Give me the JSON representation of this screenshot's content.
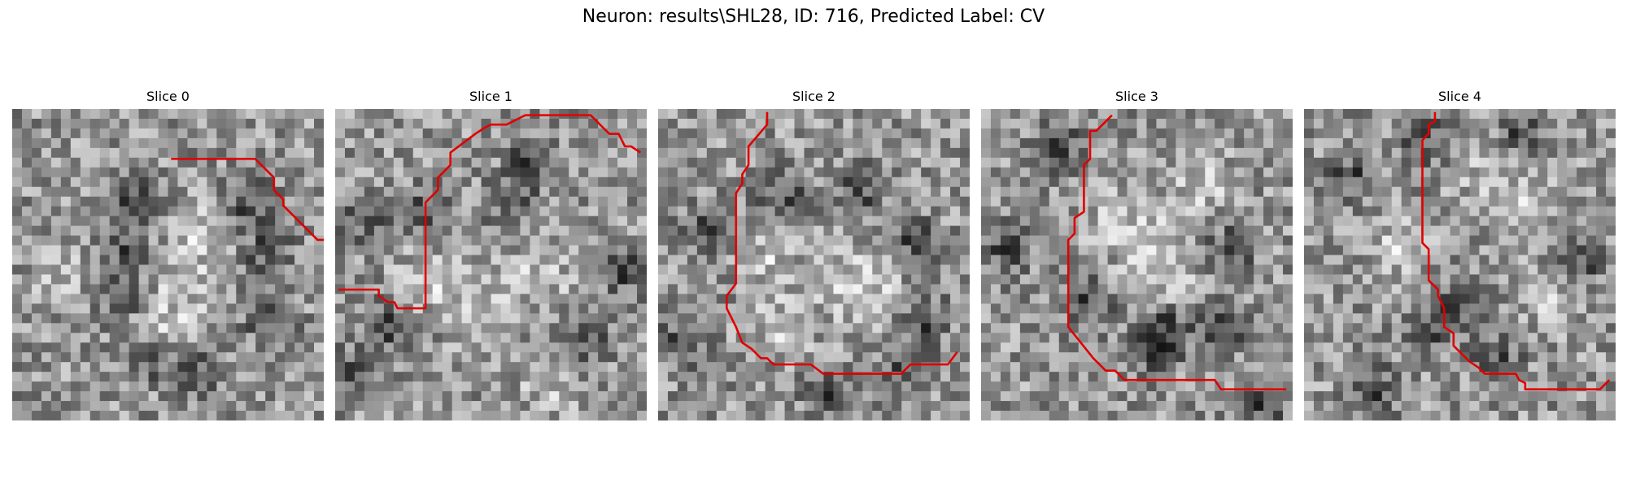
{
  "figure": {
    "title": "Neuron: results\\SHL28, ID: 716, Predicted Label: CV",
    "contour_color": "#e00000"
  },
  "panels": [
    {
      "title": "Slice 0",
      "seed": 11,
      "dark": [
        [
          0.4,
          0.29
        ],
        [
          0.36,
          0.45
        ],
        [
          0.34,
          0.6
        ],
        [
          0.42,
          0.8
        ],
        [
          0.59,
          0.84
        ],
        [
          0.82,
          0.46
        ],
        [
          0.83,
          0.68
        ],
        [
          0.75,
          0.3
        ]
      ],
      "light": [
        [
          0.17,
          0.53
        ],
        [
          0.55,
          0.55
        ],
        [
          0.6,
          0.4
        ],
        [
          0.5,
          0.7
        ]
      ],
      "contour": [
        [
          0.51,
          0.16
        ],
        [
          0.78,
          0.16
        ],
        [
          0.84,
          0.22
        ],
        [
          0.84,
          0.26
        ],
        [
          0.87,
          0.29
        ],
        [
          0.87,
          0.31
        ],
        [
          0.9,
          0.34
        ],
        [
          0.98,
          0.42
        ],
        [
          1.01,
          0.42
        ]
      ]
    },
    {
      "title": "Slice 1",
      "seed": 23,
      "dark": [
        [
          0.1,
          0.35
        ],
        [
          0.3,
          0.33
        ],
        [
          0.63,
          0.16
        ],
        [
          0.57,
          0.3
        ],
        [
          0.18,
          0.7
        ],
        [
          0.08,
          0.84
        ],
        [
          0.8,
          0.75
        ],
        [
          0.93,
          0.52
        ]
      ],
      "light": [
        [
          0.45,
          0.6
        ],
        [
          0.65,
          0.55
        ],
        [
          0.3,
          0.55
        ],
        [
          0.7,
          0.88
        ]
      ],
      "contour": [
        [
          0.01,
          0.58
        ],
        [
          0.14,
          0.58
        ],
        [
          0.14,
          0.6
        ],
        [
          0.17,
          0.62
        ],
        [
          0.19,
          0.62
        ],
        [
          0.2,
          0.64
        ],
        [
          0.29,
          0.64
        ],
        [
          0.29,
          0.3
        ],
        [
          0.33,
          0.26
        ],
        [
          0.33,
          0.22
        ],
        [
          0.37,
          0.18
        ],
        [
          0.37,
          0.14
        ],
        [
          0.45,
          0.08
        ],
        [
          0.48,
          0.06
        ],
        [
          0.5,
          0.05
        ],
        [
          0.55,
          0.05
        ],
        [
          0.59,
          0.03
        ],
        [
          0.61,
          0.02
        ],
        [
          0.82,
          0.02
        ],
        [
          0.86,
          0.06
        ],
        [
          0.88,
          0.08
        ],
        [
          0.91,
          0.08
        ],
        [
          0.93,
          0.12
        ],
        [
          0.95,
          0.12
        ],
        [
          0.98,
          0.14
        ]
      ]
    },
    {
      "title": "Slice 2",
      "seed": 37,
      "dark": [
        [
          0.4,
          0.26
        ],
        [
          0.65,
          0.26
        ],
        [
          0.82,
          0.42
        ],
        [
          0.85,
          0.68
        ],
        [
          0.8,
          0.84
        ],
        [
          0.15,
          0.38
        ],
        [
          0.08,
          0.75
        ],
        [
          0.55,
          0.92
        ]
      ],
      "light": [
        [
          0.6,
          0.55
        ],
        [
          0.4,
          0.7
        ],
        [
          0.7,
          0.6
        ],
        [
          0.35,
          0.48
        ]
      ],
      "contour": [
        [
          0.35,
          0.01
        ],
        [
          0.35,
          0.05
        ],
        [
          0.29,
          0.12
        ],
        [
          0.29,
          0.18
        ],
        [
          0.27,
          0.21
        ],
        [
          0.27,
          0.24
        ],
        [
          0.25,
          0.27
        ],
        [
          0.25,
          0.56
        ],
        [
          0.22,
          0.6
        ],
        [
          0.22,
          0.64
        ],
        [
          0.25,
          0.7
        ],
        [
          0.27,
          0.75
        ],
        [
          0.3,
          0.77
        ],
        [
          0.33,
          0.8
        ],
        [
          0.35,
          0.8
        ],
        [
          0.37,
          0.82
        ],
        [
          0.43,
          0.82
        ],
        [
          0.49,
          0.82
        ],
        [
          0.53,
          0.85
        ],
        [
          0.69,
          0.85
        ],
        [
          0.78,
          0.85
        ],
        [
          0.81,
          0.82
        ],
        [
          0.85,
          0.82
        ],
        [
          0.93,
          0.82
        ],
        [
          0.96,
          0.78
        ]
      ]
    },
    {
      "title": "Slice 3",
      "seed": 53,
      "dark": [
        [
          0.25,
          0.12
        ],
        [
          0.8,
          0.45
        ],
        [
          0.78,
          0.7
        ],
        [
          0.35,
          0.62
        ],
        [
          0.55,
          0.78
        ],
        [
          0.6,
          0.7
        ],
        [
          0.08,
          0.45
        ],
        [
          0.9,
          0.95
        ]
      ],
      "light": [
        [
          0.55,
          0.45
        ],
        [
          0.7,
          0.25
        ],
        [
          0.45,
          0.35
        ],
        [
          0.6,
          0.55
        ]
      ],
      "contour": [
        [
          0.42,
          0.02
        ],
        [
          0.37,
          0.07
        ],
        [
          0.35,
          0.07
        ],
        [
          0.35,
          0.16
        ],
        [
          0.33,
          0.18
        ],
        [
          0.33,
          0.33
        ],
        [
          0.3,
          0.35
        ],
        [
          0.3,
          0.4
        ],
        [
          0.28,
          0.42
        ],
        [
          0.28,
          0.7
        ],
        [
          0.32,
          0.75
        ],
        [
          0.36,
          0.8
        ],
        [
          0.4,
          0.84
        ],
        [
          0.43,
          0.84
        ],
        [
          0.46,
          0.87
        ],
        [
          0.75,
          0.87
        ],
        [
          0.77,
          0.9
        ],
        [
          0.98,
          0.9
        ]
      ]
    },
    {
      "title": "Slice 4",
      "seed": 71,
      "dark": [
        [
          0.15,
          0.22
        ],
        [
          0.38,
          0.1
        ],
        [
          0.7,
          0.08
        ],
        [
          0.5,
          0.62
        ],
        [
          0.4,
          0.7
        ],
        [
          0.9,
          0.48
        ],
        [
          0.62,
          0.8
        ],
        [
          0.22,
          0.9
        ]
      ],
      "light": [
        [
          0.75,
          0.3
        ],
        [
          0.3,
          0.45
        ],
        [
          0.8,
          0.6
        ],
        [
          0.6,
          0.2
        ]
      ],
      "contour": [
        [
          0.42,
          0.01
        ],
        [
          0.42,
          0.04
        ],
        [
          0.4,
          0.05
        ],
        [
          0.4,
          0.08
        ],
        [
          0.38,
          0.1
        ],
        [
          0.38,
          0.43
        ],
        [
          0.4,
          0.45
        ],
        [
          0.4,
          0.55
        ],
        [
          0.43,
          0.58
        ],
        [
          0.43,
          0.6
        ],
        [
          0.45,
          0.64
        ],
        [
          0.45,
          0.7
        ],
        [
          0.48,
          0.72
        ],
        [
          0.48,
          0.76
        ],
        [
          0.53,
          0.81
        ],
        [
          0.56,
          0.83
        ],
        [
          0.58,
          0.85
        ],
        [
          0.68,
          0.85
        ],
        [
          0.69,
          0.87
        ],
        [
          0.71,
          0.88
        ],
        [
          0.71,
          0.9
        ],
        [
          0.95,
          0.9
        ],
        [
          0.98,
          0.87
        ]
      ]
    }
  ]
}
